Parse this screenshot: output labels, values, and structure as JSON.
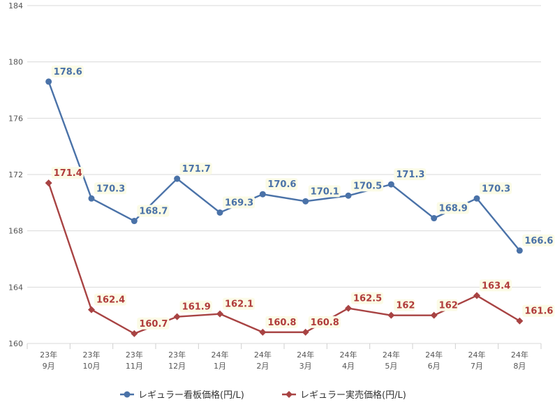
{
  "chart_data": {
    "type": "line",
    "categories": [
      [
        "23年",
        "9月"
      ],
      [
        "23年",
        "10月"
      ],
      [
        "23年",
        "11月"
      ],
      [
        "23年",
        "12月"
      ],
      [
        "24年",
        "1月"
      ],
      [
        "24年",
        "2月"
      ],
      [
        "24年",
        "3月"
      ],
      [
        "24年",
        "4月"
      ],
      [
        "24年",
        "5月"
      ],
      [
        "24年",
        "6月"
      ],
      [
        "24年",
        "7月"
      ],
      [
        "24年",
        "8月"
      ]
    ],
    "ylim": [
      160,
      184
    ],
    "yticks": [
      160,
      164,
      168,
      172,
      176,
      180,
      184
    ],
    "grid": true,
    "legend_position": "bottom-center",
    "series": [
      {
        "name": "レギュラー看板価格(円/L)",
        "color": "#4a72a8",
        "label_color": "#4a72a8",
        "marker": "circle",
        "values": [
          178.6,
          170.3,
          168.7,
          171.7,
          169.3,
          170.6,
          170.1,
          170.5,
          171.3,
          168.9,
          170.3,
          166.6
        ],
        "labels": [
          "178.6",
          "170.3",
          "168.7",
          "171.7",
          "169.3",
          "170.6",
          "170.1",
          "170.5",
          "171.3",
          "168.9",
          "170.3",
          "166.6"
        ]
      },
      {
        "name": "レギュラー実売価格(円/L)",
        "color": "#a84343",
        "label_color": "#b03c3c",
        "marker": "diamond",
        "values": [
          171.4,
          162.4,
          160.7,
          161.9,
          162.1,
          160.8,
          160.8,
          162.5,
          162,
          162,
          163.4,
          161.6
        ],
        "labels": [
          "171.4",
          "162.4",
          "160.7",
          "161.9",
          "162.1",
          "160.8",
          "160.8",
          "162.5",
          "162",
          "162",
          "163.4",
          "161.6"
        ]
      }
    ]
  }
}
